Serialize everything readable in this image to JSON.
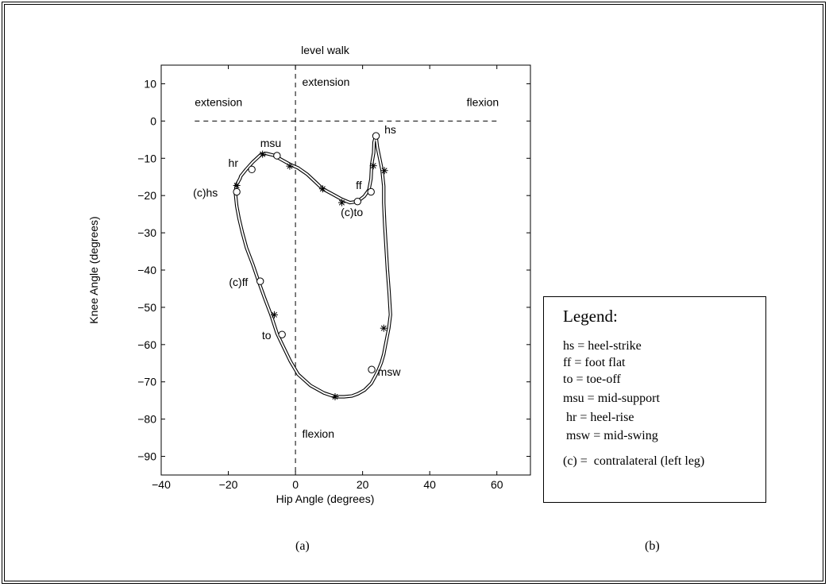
{
  "chart_data": {
    "type": "line",
    "title": "level walk",
    "xlabel": "Hip Angle (degrees)",
    "ylabel": "Knee Angle (degrees)",
    "xlim": [
      -40,
      70
    ],
    "ylim": [
      -95,
      15
    ],
    "xticks": [
      -40,
      -20,
      0,
      20,
      40,
      60
    ],
    "yticks": [
      10,
      0,
      -10,
      -20,
      -30,
      -40,
      -50,
      -60,
      -70,
      -80,
      -90
    ],
    "xtick_labels": [
      "−40",
      "−20",
      "0",
      "20",
      "40",
      "60"
    ],
    "ytick_labels": [
      "10",
      "0",
      "−10",
      "−20",
      "−30",
      "−40",
      "−50",
      "−60",
      "−70",
      "−80",
      "−90"
    ],
    "grid": false,
    "reference_lines": {
      "horizontal": {
        "y": 0,
        "x_from": -30,
        "x_to": 60
      },
      "vertical": {
        "x": 0,
        "y_from": -95,
        "y_to": 15
      }
    },
    "region_labels": [
      {
        "text": "extension",
        "x": -30,
        "y": 4
      },
      {
        "text": "flexion",
        "x": 51,
        "y": 4
      },
      {
        "text": "extension",
        "x": 2,
        "y": 9.5
      },
      {
        "text": "flexion",
        "x": 2,
        "y": -85
      }
    ],
    "series": [
      {
        "curve": "gait-cycle",
        "x": [
          24,
          24.4,
          25.2,
          25.8,
          26.3,
          26.3,
          26.6,
          27,
          27.4,
          27.9,
          28.3,
          27.8,
          26.8,
          26.3,
          25.6,
          24.8,
          23.7,
          22.6,
          20.6,
          18.6,
          16.8,
          14.5,
          12.5,
          11.8,
          8.5,
          4.5,
          0.8,
          -1.5,
          -3.7,
          -5.5,
          -7.3,
          -9.2,
          -11,
          -12.7,
          -14.6,
          -15.8,
          -16.8,
          -17.5,
          -17.9,
          -17.6,
          -16.5,
          -16.3,
          -14.7,
          -12.7,
          -10.3,
          -8.7,
          -6.5,
          -4.5,
          -1.5,
          0.8,
          3.5,
          6,
          8.1,
          10.8,
          13.8,
          16.2,
          18.5,
          20.5,
          21.9,
          22.5,
          22.7,
          23.3,
          23.4,
          23.7,
          24
        ],
        "y": [
          -4,
          -7,
          -10.5,
          -13.2,
          -17.5,
          -22,
          -28,
          -34,
          -40,
          -46,
          -52,
          -55.6,
          -60.2,
          -62.6,
          -64.8,
          -66.6,
          -68.6,
          -70.4,
          -72.2,
          -73.2,
          -73.8,
          -74,
          -74,
          -74,
          -73,
          -71,
          -68,
          -64.5,
          -60.4,
          -57,
          -52,
          -47.5,
          -43,
          -38.5,
          -34,
          -30,
          -26.2,
          -22.8,
          -19.3,
          -17.2,
          -15.4,
          -14.8,
          -13,
          -11,
          -9,
          -8.7,
          -9.2,
          -10.2,
          -11.7,
          -12.6,
          -14.3,
          -16.4,
          -18.2,
          -19.5,
          -21,
          -21.9,
          -21.6,
          -20.2,
          -18.4,
          -15.5,
          -11.7,
          -8.5,
          -5.7,
          -4.6,
          -4
        ]
      }
    ],
    "markers": [
      {
        "label": "hs",
        "shape": "circle",
        "x": 24,
        "y": -4
      },
      {
        "label": "ff",
        "shape": "circle",
        "x": 22.5,
        "y": -19
      },
      {
        "label": "(c)to",
        "shape": "circle",
        "x": 18.5,
        "y": -21.6
      },
      {
        "label": "msu",
        "shape": "circle",
        "x": -5.5,
        "y": -9.3
      },
      {
        "label": "hr",
        "shape": "circle",
        "x": -13,
        "y": -13
      },
      {
        "label": "(c)hs",
        "shape": "circle",
        "x": -17.5,
        "y": -19
      },
      {
        "label": "(c)ff",
        "shape": "circle",
        "x": -10.5,
        "y": -43
      },
      {
        "label": "to",
        "shape": "circle",
        "x": -4,
        "y": -57.3
      },
      {
        "label": "msw",
        "shape": "circle",
        "x": 22.7,
        "y": -66.7
      },
      {
        "label": "",
        "shape": "star",
        "x": 26.5,
        "y": -13.3
      },
      {
        "label": "",
        "shape": "star",
        "x": 23.2,
        "y": -12
      },
      {
        "label": "",
        "shape": "star",
        "x": 13.8,
        "y": -21.9
      },
      {
        "label": "",
        "shape": "star",
        "x": 8.1,
        "y": -18.2
      },
      {
        "label": "",
        "shape": "star",
        "x": -1.7,
        "y": -12.1
      },
      {
        "label": "",
        "shape": "star",
        "x": -9.8,
        "y": -8.9
      },
      {
        "label": "",
        "shape": "star",
        "x": -17.5,
        "y": -17.3
      },
      {
        "label": "",
        "shape": "star",
        "x": -6.3,
        "y": -52
      },
      {
        "label": "",
        "shape": "star",
        "x": 26.3,
        "y": -55.6
      },
      {
        "label": "",
        "shape": "star",
        "x": 11.8,
        "y": -74
      }
    ],
    "marker_label_positions": [
      {
        "label": "hs",
        "x": 26.5,
        "y": -3.3
      },
      {
        "label": "ff",
        "x": 18,
        "y": -18.3
      },
      {
        "label": "(c)to",
        "x": 13.5,
        "y": -25.5
      },
      {
        "label": "msu",
        "x": -10.5,
        "y": -7
      },
      {
        "label": "hr",
        "x": -20,
        "y": -12.3
      },
      {
        "label": "(c)hs",
        "x": -30.5,
        "y": -20.3
      },
      {
        "label": "(c)ff",
        "x": -19.8,
        "y": -44.3
      },
      {
        "label": "to",
        "x": -10,
        "y": -58.5
      },
      {
        "label": "msw",
        "x": 24.5,
        "y": -68.3
      }
    ]
  },
  "legend": {
    "title": "Legend:",
    "items": [
      "hs = heel-strike",
      "ff = foot flat",
      "to = toe-off",
      "msu = mid-support",
      " hr = heel-rise",
      " msw = mid-swing",
      "(c) =  contralateral (left leg)"
    ]
  },
  "captions": {
    "a": "(a)",
    "b": "(b)"
  }
}
